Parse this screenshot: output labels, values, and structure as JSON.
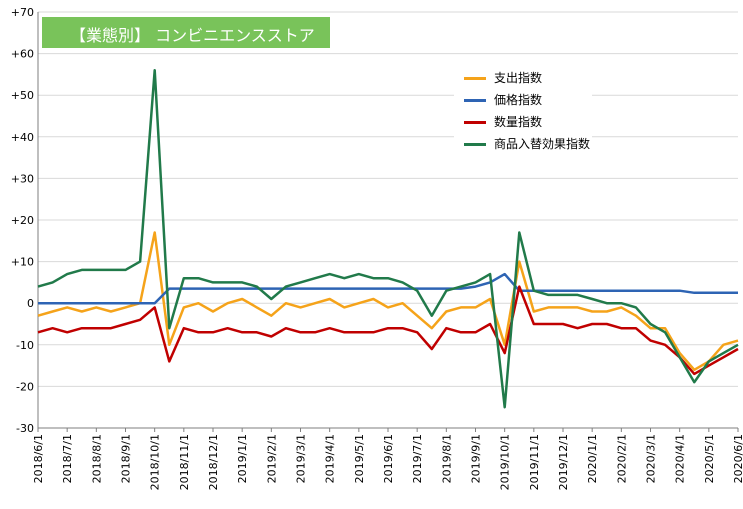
{
  "chart_data": {
    "type": "line",
    "title": "【業態別】 コンビニエンスストア",
    "ylim": [
      -30,
      70
    ],
    "yticks": [
      -30,
      -20,
      -10,
      0,
      10,
      20,
      30,
      40,
      50,
      60,
      70
    ],
    "ytick_labels": [
      "-30",
      "-20",
      "-10",
      "0",
      "+10",
      "+20",
      "+30",
      "+40",
      "+50",
      "+60",
      "+70"
    ],
    "x": [
      "2018/6/1",
      "2018/6/16",
      "2018/7/1",
      "2018/7/16",
      "2018/8/1",
      "2018/8/16",
      "2018/9/1",
      "2018/9/16",
      "2018/10/1",
      "2018/10/16",
      "2018/11/1",
      "2018/11/16",
      "2018/12/1",
      "2018/12/16",
      "2019/1/1",
      "2019/1/16",
      "2019/2/1",
      "2019/2/16",
      "2019/3/1",
      "2019/3/16",
      "2019/4/1",
      "2019/4/16",
      "2019/5/1",
      "2019/5/16",
      "2019/6/1",
      "2019/6/16",
      "2019/7/1",
      "2019/7/16",
      "2019/8/1",
      "2019/8/16",
      "2019/9/1",
      "2019/9/16",
      "2019/10/1",
      "2019/10/16",
      "2019/11/1",
      "2019/11/16",
      "2019/12/1",
      "2019/12/16",
      "2020/1/1",
      "2020/1/16",
      "2020/2/1",
      "2020/2/16",
      "2020/3/1",
      "2020/3/16",
      "2020/4/1",
      "2020/4/16",
      "2020/5/1",
      "2020/5/16",
      "2020/6/1"
    ],
    "xtick_labels": [
      "2018/6/1",
      "2018/7/1",
      "2018/8/1",
      "2018/9/1",
      "2018/10/1",
      "2018/11/1",
      "2018/12/1",
      "2019/1/1",
      "2019/2/1",
      "2019/3/1",
      "2019/4/1",
      "2019/5/1",
      "2019/6/1",
      "2019/7/1",
      "2019/8/1",
      "2019/9/1",
      "2019/10/1",
      "2019/11/1",
      "2019/12/1",
      "2020/1/1",
      "2020/2/1",
      "2020/3/1",
      "2020/4/1",
      "2020/5/1",
      "2020/6/1"
    ],
    "series": [
      {
        "name": "支出指数",
        "color": "#f5a31a",
        "values": [
          -3,
          -2,
          -1,
          -2,
          -1,
          -2,
          -1,
          0,
          17,
          -10,
          -1,
          0,
          -2,
          0,
          1,
          -1,
          -3,
          0,
          -1,
          0,
          1,
          -1,
          0,
          1,
          -1,
          0,
          -3,
          -6,
          -2,
          -1,
          -1,
          1,
          -10,
          10,
          -2,
          -1,
          -1,
          -1,
          -2,
          -2,
          -1,
          -3,
          -6,
          -6,
          -12,
          -16,
          -14,
          -10,
          -9
        ]
      },
      {
        "name": "価格指数",
        "color": "#2e64b4",
        "values": [
          0,
          0,
          0,
          0,
          0,
          0,
          0,
          0,
          0,
          3.5,
          3.5,
          3.5,
          3.5,
          3.5,
          3.5,
          3.5,
          3.5,
          3.5,
          3.5,
          3.5,
          3.5,
          3.5,
          3.5,
          3.5,
          3.5,
          3.5,
          3.5,
          3.5,
          3.5,
          3.5,
          4,
          5,
          7,
          3,
          3,
          3,
          3,
          3,
          3,
          3,
          3,
          3,
          3,
          3,
          3,
          2.5,
          2.5,
          2.5,
          2.5
        ]
      },
      {
        "name": "数量指数",
        "color": "#c00000",
        "values": [
          -7,
          -6,
          -7,
          -6,
          -6,
          -6,
          -5,
          -4,
          -1,
          -14,
          -6,
          -7,
          -7,
          -6,
          -7,
          -7,
          -8,
          -6,
          -7,
          -7,
          -6,
          -7,
          -7,
          -7,
          -6,
          -6,
          -7,
          -11,
          -6,
          -7,
          -7,
          -5,
          -12,
          4,
          -5,
          -5,
          -5,
          -6,
          -5,
          -5,
          -6,
          -6,
          -9,
          -10,
          -13,
          -17,
          -15,
          -13,
          -11
        ]
      },
      {
        "name": "商品入替効果指数",
        "color": "#217a4a",
        "values": [
          4,
          5,
          7,
          8,
          8,
          8,
          8,
          10,
          56,
          -6,
          6,
          6,
          5,
          5,
          5,
          4,
          1,
          4,
          5,
          6,
          7,
          6,
          7,
          6,
          6,
          5,
          3,
          -3,
          3,
          4,
          5,
          7,
          -25,
          17,
          3,
          2,
          2,
          2,
          1,
          0,
          0,
          -1,
          -5,
          -7,
          -13,
          -19,
          -14,
          -12,
          -10
        ]
      }
    ]
  }
}
